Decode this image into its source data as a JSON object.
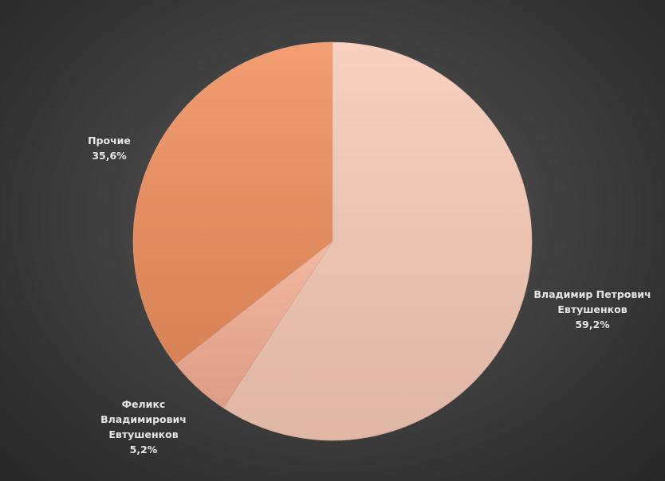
{
  "chart_data": {
    "type": "pie",
    "categories": [
      "Владимир Петрович Евтушенков",
      "Феликс Владимирович Евтушенков",
      "Прочие"
    ],
    "values": [
      59.2,
      5.2,
      35.6
    ],
    "value_labels": [
      "59,2%",
      "5,2%",
      "35,6%"
    ],
    "colors": [
      "#f8cbb8",
      "#f4af95",
      "#f0915f"
    ]
  }
}
